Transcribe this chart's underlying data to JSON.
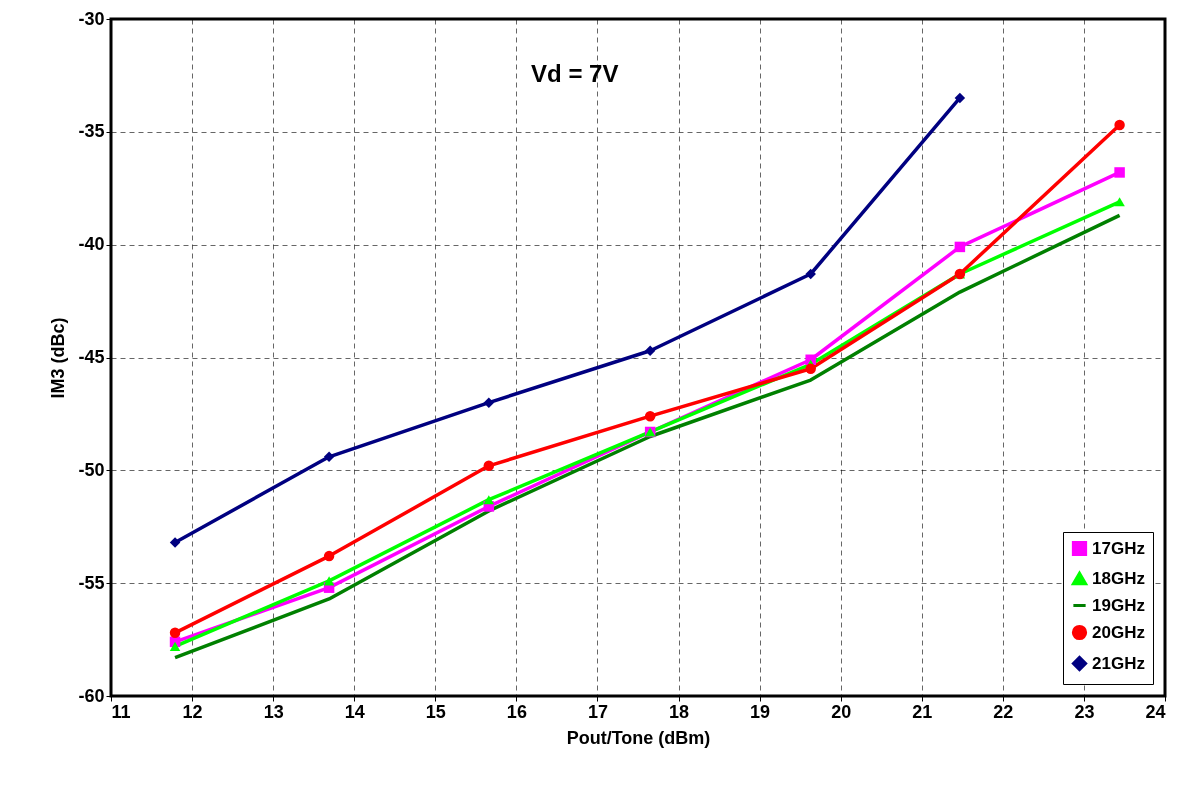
{
  "chart_data": {
    "type": "line",
    "xlabel": "Pout/Tone (dBm)",
    "ylabel": "IM3 (dBc)",
    "annotations": [
      "Vd = 7V"
    ],
    "x": [
      11.79,
      13.69,
      15.66,
      17.65,
      19.63,
      21.47,
      23.44
    ],
    "series": [
      {
        "name": "17GHz",
        "color": "#ff00ff",
        "marker": "square",
        "values": [
          -57.6,
          -55.2,
          -51.6,
          -48.3,
          -45.1,
          -40.1,
          -36.8
        ]
      },
      {
        "name": "18GHz",
        "color": "#00ff00",
        "marker": "triangle",
        "values": [
          -57.8,
          -54.9,
          -51.3,
          -48.3,
          -45.3,
          -41.3,
          -38.1
        ]
      },
      {
        "name": "19GHz",
        "color": "#008000",
        "marker": "none",
        "values": [
          -58.3,
          -55.7,
          -51.8,
          -48.5,
          -46.0,
          -42.1,
          -38.7
        ]
      },
      {
        "name": "20GHz",
        "color": "#ff0000",
        "marker": "circle",
        "values": [
          -57.2,
          -53.8,
          -49.8,
          -47.6,
          -45.5,
          -41.3,
          -34.7
        ]
      },
      {
        "name": "21GHz",
        "color": "#000080",
        "marker": "diamond",
        "values": [
          -53.2,
          -49.4,
          -47.0,
          -44.7,
          -41.3,
          -33.5,
          null
        ]
      }
    ],
    "xlim": [
      11,
      24
    ],
    "xticks": [
      11,
      12,
      13,
      14,
      15,
      16,
      17,
      18,
      19,
      20,
      21,
      22,
      23,
      24
    ],
    "ylim": [
      -60,
      -30
    ],
    "yticks": [
      -60,
      -55,
      -50,
      -45,
      -40,
      -35,
      -30
    ],
    "grid": true,
    "legend": "bottom right"
  }
}
